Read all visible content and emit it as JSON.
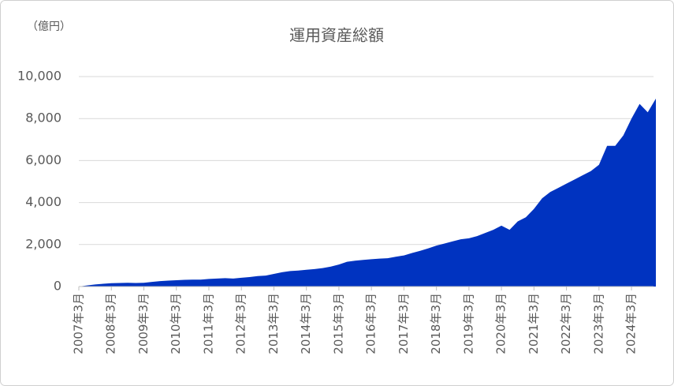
{
  "chart_data": {
    "type": "area",
    "title": "運用資産総額",
    "y_unit": "（億円）",
    "color": "#0033c0",
    "categories": [
      "2007年3月",
      null,
      null,
      null,
      "2008年3月",
      null,
      null,
      null,
      "2009年3月",
      null,
      null,
      null,
      "2010年3月",
      null,
      null,
      null,
      "2011年3月",
      null,
      null,
      null,
      "2012年3月",
      null,
      null,
      null,
      "2013年3月",
      null,
      null,
      null,
      "2014年3月",
      null,
      null,
      null,
      "2015年3月",
      null,
      null,
      null,
      "2016年3月",
      null,
      null,
      null,
      "2017年3月",
      null,
      null,
      null,
      "2018年3月",
      null,
      null,
      null,
      "2019年3月",
      null,
      null,
      null,
      "2020年3月",
      null,
      null,
      null,
      "2021年3月",
      null,
      null,
      null,
      "2022年3月",
      null,
      null,
      null,
      "2023年3月",
      null,
      null,
      null,
      "2024年3月",
      null,
      null,
      null
    ],
    "values": [
      0,
      50,
      100,
      130,
      160,
      170,
      180,
      170,
      180,
      220,
      260,
      280,
      300,
      320,
      330,
      330,
      360,
      380,
      400,
      380,
      420,
      450,
      500,
      520,
      600,
      680,
      740,
      760,
      800,
      830,
      880,
      950,
      1050,
      1180,
      1230,
      1270,
      1300,
      1330,
      1350,
      1420,
      1480,
      1600,
      1700,
      1820,
      1950,
      2050,
      2150,
      2250,
      2300,
      2400,
      2550,
      2700,
      2900,
      2700,
      3100,
      3300,
      3700,
      4200,
      4500,
      4700,
      4900,
      5100,
      5300,
      5500,
      5800,
      6700,
      6700,
      7200,
      8000,
      8700,
      8300,
      8950
    ],
    "ylim": [
      0,
      10000
    ],
    "yticks": [
      0,
      {
        "value": 2000,
        "label": "2,000"
      },
      {
        "value": 4000,
        "label": "4,000"
      },
      {
        "value": 6000,
        "label": "6,000"
      },
      {
        "value": 8000,
        "label": "8,000"
      },
      {
        "value": 10000,
        "label": "10,000"
      }
    ],
    "grid": true
  }
}
